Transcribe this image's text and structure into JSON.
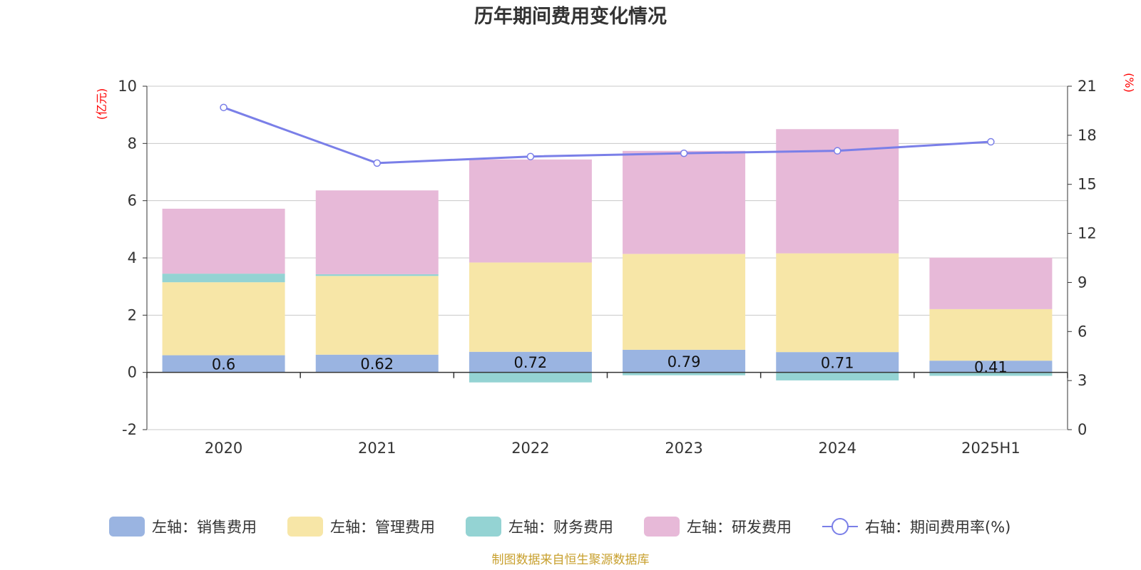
{
  "colors": {
    "sales": "#9ab4e1",
    "admin": "#f7e6a7",
    "finance": "#94d3d3",
    "rnd": "#e7b9d8",
    "rate": "#7a7fe8",
    "grid": "#c8c8c8",
    "axis": "#333333",
    "unit": "#ff0000",
    "source": "#c8a02e"
  },
  "chart_data": {
    "type": "bar",
    "title": "历年期间费用变化情况",
    "categories": [
      "2020",
      "2021",
      "2022",
      "2023",
      "2024",
      "2025H1"
    ],
    "left_axis": {
      "unit": "(亿元)",
      "ylim": [
        -2,
        10
      ],
      "ticks": [
        -2,
        0,
        2,
        4,
        6,
        8,
        10
      ]
    },
    "right_axis": {
      "unit": "(%)",
      "ylim": [
        0,
        21
      ],
      "ticks": [
        0,
        3,
        6,
        9,
        12,
        15,
        18,
        21
      ]
    },
    "grid": true,
    "legend_position": "bottom",
    "series": [
      {
        "key": "sales",
        "name": "左轴：销售费用",
        "type": "bar",
        "axis": "left",
        "values": [
          0.6,
          0.62,
          0.72,
          0.79,
          0.71,
          0.41
        ],
        "labels": [
          "0.6",
          "0.62",
          "0.72",
          "0.79",
          "0.71",
          "0.41"
        ]
      },
      {
        "key": "admin",
        "name": "左轴：管理费用",
        "type": "bar",
        "axis": "left",
        "values": [
          2.55,
          2.75,
          3.12,
          3.35,
          3.45,
          1.8
        ]
      },
      {
        "key": "finance",
        "name": "左轴：财务费用",
        "type": "bar",
        "axis": "left",
        "values": [
          0.3,
          0.06,
          -0.35,
          -0.1,
          -0.28,
          -0.12
        ]
      },
      {
        "key": "rnd",
        "name": "左轴：研发费用",
        "type": "bar",
        "axis": "left",
        "values": [
          2.27,
          2.93,
          3.6,
          3.6,
          4.34,
          1.8
        ]
      },
      {
        "key": "rate",
        "name": "右轴：期间费用率(%)",
        "type": "line",
        "axis": "right",
        "values": [
          19.7,
          16.3,
          16.7,
          16.9,
          17.05,
          17.6
        ]
      }
    ]
  },
  "source_note": "制图数据来自恒生聚源数据库"
}
